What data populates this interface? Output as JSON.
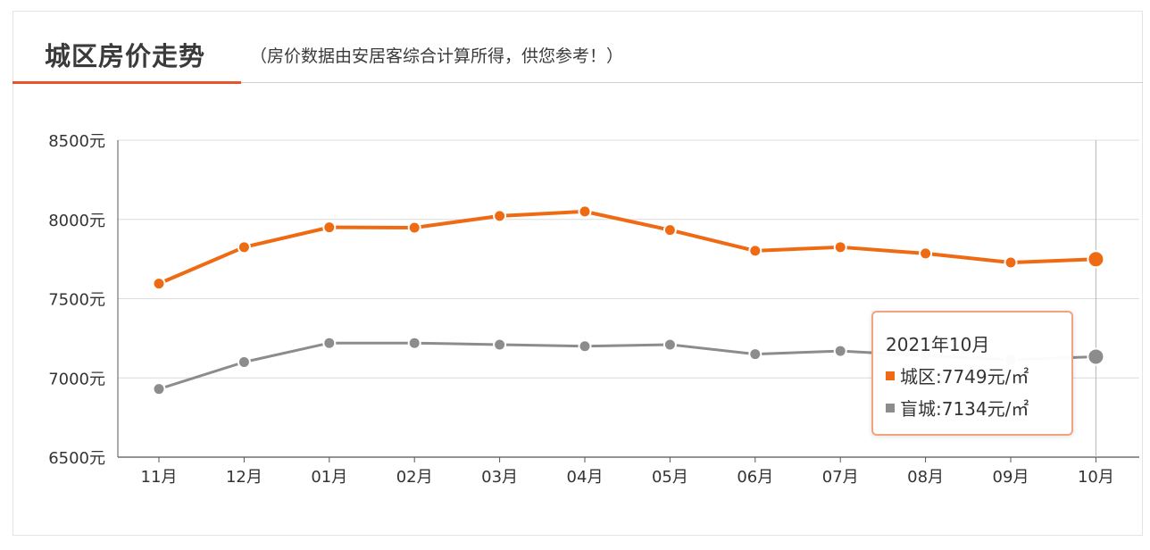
{
  "header": {
    "title": "城区房价走势",
    "subtitle": "（房价数据由安居客综合计算所得，供您参考！）",
    "accent_color": "#e8532a"
  },
  "chart_data": {
    "type": "line",
    "categories": [
      "11月",
      "12月",
      "01月",
      "02月",
      "03月",
      "04月",
      "05月",
      "06月",
      "07月",
      "08月",
      "09月",
      "10月"
    ],
    "series": [
      {
        "name": "城区",
        "color": "#ee6a13",
        "values": [
          7595,
          7825,
          7950,
          7948,
          8022,
          8050,
          7933,
          7802,
          7825,
          7785,
          7728,
          7749
        ]
      },
      {
        "name": "盲城",
        "color": "#8c8c8c",
        "values": [
          6930,
          7100,
          7220,
          7220,
          7210,
          7200,
          7210,
          7150,
          7170,
          7140,
          7115,
          7134
        ]
      }
    ],
    "y_tick_labels": [
      "8500元",
      "8000元",
      "7500元",
      "7000元",
      "6500元"
    ],
    "y_ticks": [
      8500,
      8000,
      7500,
      7000,
      6500
    ],
    "ylim": [
      6500,
      8500
    ],
    "grid": true,
    "highlight_index": 11
  },
  "tooltip": {
    "title": "2021年10月",
    "row1": "城区:7749元/㎡",
    "row2": "盲城:7134元/㎡"
  }
}
